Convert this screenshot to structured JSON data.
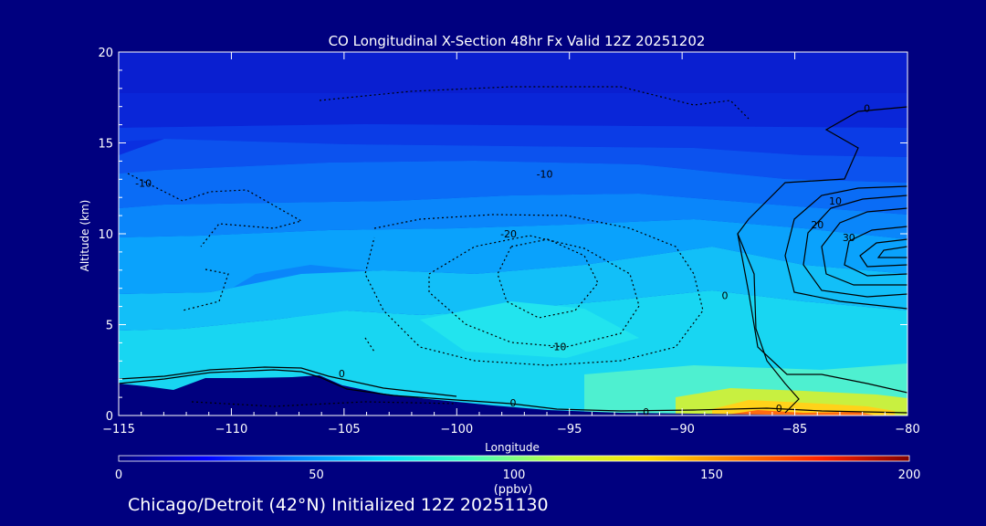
{
  "chart_data": {
    "type": "heatmap",
    "title": "CO Longitudinal X-Section 48hr  Fx Valid 12Z 20251202",
    "xlabel": "Longitude",
    "ylabel": "Altitude (km)",
    "xlim": [
      -115,
      -80
    ],
    "ylim": [
      0,
      20
    ],
    "x_ticks": [
      -115,
      -110,
      -105,
      -100,
      -95,
      -90,
      -85,
      -80
    ],
    "x_tick_labels": [
      "−115",
      "−110",
      "−105",
      "−100",
      "−95",
      "−90",
      "−85",
      "−80"
    ],
    "y_ticks": [
      0,
      5,
      10,
      15,
      20
    ],
    "y_tick_labels": [
      "0",
      "5",
      "10",
      "15",
      "20"
    ],
    "colorbar": {
      "label": "(ppbv)",
      "range": [
        0,
        200
      ],
      "ticks": [
        0,
        50,
        100,
        150,
        200
      ],
      "tick_labels": [
        "0",
        "50",
        "100",
        "150",
        "200"
      ],
      "colors": [
        "#00007f",
        "#0000ff",
        "#0080ff",
        "#00e0ff",
        "#40ffc0",
        "#c0ff40",
        "#ffe000",
        "#ff8000",
        "#ff2000",
        "#7f0000"
      ]
    },
    "contour_labels": [
      {
        "text": "0",
        "lon": -81.8,
        "alt": 16.9
      },
      {
        "text": "-10",
        "lon": -113.9,
        "alt": 12.8
      },
      {
        "text": "-10",
        "lon": -96.1,
        "alt": 13.3
      },
      {
        "text": "10",
        "lon": -83.2,
        "alt": 11.8
      },
      {
        "text": "20",
        "lon": -84.0,
        "alt": 10.5
      },
      {
        "text": "30",
        "lon": -82.6,
        "alt": 9.8
      },
      {
        "text": "-20",
        "lon": -97.7,
        "alt": 10.0
      },
      {
        "text": "0",
        "lon": -88.1,
        "alt": 6.6
      },
      {
        "text": "-10",
        "lon": -95.5,
        "alt": 3.8
      },
      {
        "text": "0",
        "lon": -105.1,
        "alt": 2.3
      },
      {
        "text": "0",
        "lon": -97.5,
        "alt": 0.7
      },
      {
        "text": "0",
        "lon": -91.6,
        "alt": 0.2
      },
      {
        "text": "0",
        "lon": -85.7,
        "alt": 0.4
      }
    ]
  },
  "footer": "Chicago/Detroit (42°N) Initialized 12Z 20251130"
}
